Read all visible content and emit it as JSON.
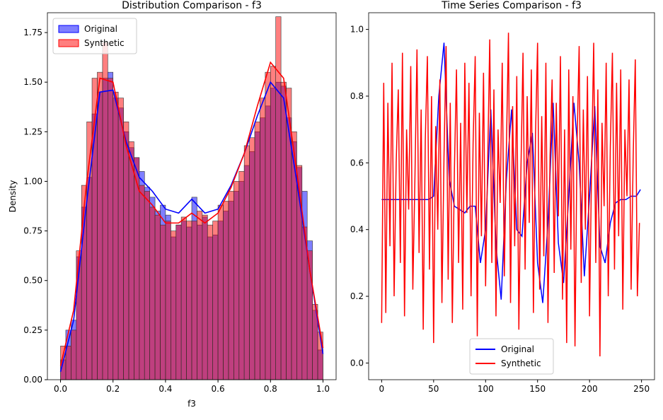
{
  "chart_data": [
    {
      "type": "histogram",
      "title": "Distribution Comparison - f3",
      "x_label": "f3",
      "y_label": "Density",
      "bins": [
        0,
        0.02,
        0.04,
        0.06,
        0.08,
        0.1,
        0.12,
        0.14,
        0.16,
        0.18,
        0.2,
        0.22,
        0.24,
        0.26,
        0.28,
        0.3,
        0.32,
        0.34,
        0.36,
        0.38,
        0.4,
        0.42,
        0.44,
        0.46,
        0.48,
        0.5,
        0.52,
        0.54,
        0.56,
        0.58,
        0.6,
        0.62,
        0.64,
        0.66,
        0.68,
        0.7,
        0.72,
        0.74,
        0.76,
        0.78,
        0.8,
        0.82,
        0.84,
        0.86,
        0.88,
        0.9,
        0.92,
        0.94,
        0.96,
        0.98,
        1
      ],
      "kde_x": [
        0,
        0.05,
        0.1,
        0.15,
        0.2,
        0.25,
        0.3,
        0.35,
        0.4,
        0.45,
        0.5,
        0.55,
        0.6,
        0.65,
        0.7,
        0.75,
        0.8,
        0.85,
        0.9,
        0.95,
        1
      ],
      "series": [
        {
          "name": "Original",
          "color": "#0000ff",
          "values": [
            0.1,
            0.25,
            0.3,
            0.62,
            0.87,
            1.02,
            1.34,
            1.45,
            1.52,
            1.55,
            1.42,
            1.37,
            1.25,
            1.17,
            1.12,
            1.05,
            0.97,
            0.92,
            0.85,
            0.88,
            0.83,
            0.72,
            0.78,
            0.8,
            0.77,
            0.92,
            0.78,
            0.82,
            0.72,
            0.73,
            0.8,
            0.85,
            0.9,
            0.95,
            1.0,
            1.08,
            1.15,
            1.25,
            1.32,
            1.38,
            1.47,
            1.5,
            1.48,
            1.32,
            1.2,
            1.07,
            0.95,
            0.7,
            0.35,
            0.15
          ],
          "kde_values": [
            0.04,
            0.3,
            0.9,
            1.45,
            1.46,
            1.2,
            1.02,
            0.95,
            0.86,
            0.84,
            0.91,
            0.84,
            0.86,
            0.98,
            1.14,
            1.33,
            1.5,
            1.42,
            1.0,
            0.55,
            0.13
          ]
        },
        {
          "name": "Synthetic",
          "color": "#ff0000",
          "values": [
            0.17,
            0.17,
            0.25,
            0.65,
            0.98,
            1.3,
            1.52,
            1.55,
            1.7,
            1.52,
            1.45,
            1.42,
            1.3,
            1.2,
            1.12,
            0.98,
            0.95,
            0.87,
            0.83,
            0.78,
            0.8,
            0.75,
            0.78,
            0.82,
            0.8,
            0.8,
            0.85,
            0.83,
            0.78,
            0.8,
            0.88,
            0.9,
            0.95,
            1.0,
            1.05,
            1.18,
            1.22,
            1.3,
            1.42,
            1.55,
            1.58,
            1.83,
            1.5,
            1.47,
            1.25,
            1.08,
            0.77,
            0.65,
            0.38,
            0.24
          ],
          "kde_values": [
            0.07,
            0.35,
            1.0,
            1.52,
            1.5,
            1.18,
            0.95,
            0.88,
            0.79,
            0.79,
            0.84,
            0.79,
            0.84,
            0.97,
            1.14,
            1.38,
            1.6,
            1.52,
            1.05,
            0.55,
            0.16
          ]
        }
      ],
      "xlim": [
        -0.05,
        1.05
      ],
      "ylim": [
        0,
        1.85
      ],
      "xticks": [
        {
          "value": 0,
          "label": "0.0"
        },
        0.2,
        0.4,
        0.6,
        0.8,
        {
          "value": 1,
          "label": "1.0"
        }
      ],
      "yticks": [
        {
          "value": 0,
          "label": "0.00"
        },
        0.25,
        {
          "value": 0.5,
          "label": "0.50"
        },
        0.75,
        {
          "value": 1,
          "label": "1.00"
        },
        1.25,
        {
          "value": 1.5,
          "label": "1.50"
        },
        1.75
      ],
      "legend": "upper left"
    },
    {
      "type": "line",
      "title": "Time Series Comparison - f3",
      "series": [
        {
          "name": "Original",
          "color": "#0000ff",
          "x": [
            0,
            5,
            10,
            15,
            20,
            25,
            30,
            35,
            40,
            45,
            50,
            55,
            60,
            65,
            70,
            75,
            80,
            85,
            90,
            95,
            100,
            105,
            110,
            115,
            120,
            125,
            130,
            135,
            140,
            145,
            150,
            155,
            160,
            165,
            170,
            175,
            180,
            185,
            190,
            195,
            200,
            205,
            210,
            215,
            220,
            225,
            230,
            235,
            240,
            245,
            249
          ],
          "values": [
            0.49,
            0.49,
            0.49,
            0.49,
            0.49,
            0.49,
            0.49,
            0.49,
            0.49,
            0.49,
            0.5,
            0.8,
            0.96,
            0.55,
            0.47,
            0.46,
            0.45,
            0.47,
            0.47,
            0.3,
            0.4,
            0.76,
            0.35,
            0.19,
            0.55,
            0.76,
            0.4,
            0.38,
            0.6,
            0.69,
            0.3,
            0.18,
            0.42,
            0.78,
            0.36,
            0.24,
            0.5,
            0.78,
            0.6,
            0.26,
            0.5,
            0.77,
            0.35,
            0.3,
            0.42,
            0.48,
            0.49,
            0.49,
            0.5,
            0.5,
            0.52
          ]
        },
        {
          "name": "Synthetic",
          "color": "#ff0000",
          "x": [
            0,
            2,
            4,
            6,
            8,
            10,
            12,
            14,
            16,
            18,
            20,
            22,
            24,
            26,
            28,
            30,
            32,
            34,
            36,
            38,
            40,
            42,
            44,
            46,
            48,
            50,
            52,
            54,
            56,
            58,
            60,
            62,
            64,
            66,
            68,
            70,
            72,
            74,
            76,
            78,
            80,
            82,
            84,
            86,
            88,
            90,
            92,
            94,
            96,
            98,
            100,
            102,
            104,
            106,
            108,
            110,
            112,
            114,
            116,
            118,
            120,
            122,
            124,
            126,
            128,
            130,
            132,
            134,
            136,
            138,
            140,
            142,
            144,
            146,
            148,
            150,
            152,
            154,
            156,
            158,
            160,
            162,
            164,
            166,
            168,
            170,
            172,
            174,
            176,
            178,
            180,
            182,
            184,
            186,
            188,
            190,
            192,
            194,
            196,
            198,
            200,
            202,
            204,
            206,
            208,
            210,
            212,
            214,
            216,
            218,
            220,
            222,
            224,
            226,
            228,
            230,
            232,
            234,
            236,
            238,
            240,
            242,
            244,
            246,
            248
          ],
          "values": [
            0.12,
            0.84,
            0.15,
            0.78,
            0.35,
            0.9,
            0.2,
            0.6,
            0.82,
            0.3,
            0.93,
            0.14,
            0.7,
            0.46,
            0.89,
            0.22,
            0.55,
            0.94,
            0.33,
            0.76,
            0.1,
            0.67,
            0.92,
            0.28,
            0.8,
            0.06,
            0.71,
            0.4,
            0.85,
            0.18,
            0.62,
            0.95,
            0.25,
            0.78,
            0.12,
            0.58,
            0.88,
            0.3,
            0.72,
            0.16,
            0.9,
            0.45,
            0.84,
            0.2,
            0.66,
            0.92,
            0.08,
            0.75,
            0.38,
            0.87,
            0.23,
            0.6,
            0.97,
            0.3,
            0.82,
            0.14,
            0.7,
            0.48,
            0.9,
            0.26,
            0.64,
            0.99,
            0.18,
            0.77,
            0.35,
            0.86,
            0.1,
            0.58,
            0.93,
            0.28,
            0.8,
            0.42,
            0.88,
            0.15,
            0.68,
            0.96,
            0.22,
            0.74,
            0.32,
            0.9,
            0.12,
            0.62,
            0.85,
            0.27,
            0.78,
            0.44,
            0.92,
            0.19,
            0.7,
            0.06,
            0.88,
            0.34,
            0.8,
            0.05,
            0.66,
            0.95,
            0.24,
            0.76,
            0.4,
            0.86,
            0.14,
            0.6,
            0.96,
            0.3,
            0.82,
            0.02,
            0.72,
            0.47,
            0.9,
            0.2,
            0.65,
            0.93,
            0.28,
            0.84,
            0.38,
            0.88,
            0.16,
            0.7,
            0.5,
            0.85,
            0.22,
            0.62,
            0.91,
            0.2,
            0.42
          ]
        }
      ],
      "xlim": [
        -12.5,
        262.5
      ],
      "ylim": [
        -0.05,
        1.05
      ],
      "xticks": [
        0,
        50,
        100,
        150,
        200,
        250
      ],
      "yticks": [
        {
          "value": 0,
          "label": "0.0"
        },
        0.2,
        0.4,
        0.6,
        0.8,
        {
          "value": 1,
          "label": "1.0"
        }
      ],
      "legend": "lower center"
    }
  ]
}
